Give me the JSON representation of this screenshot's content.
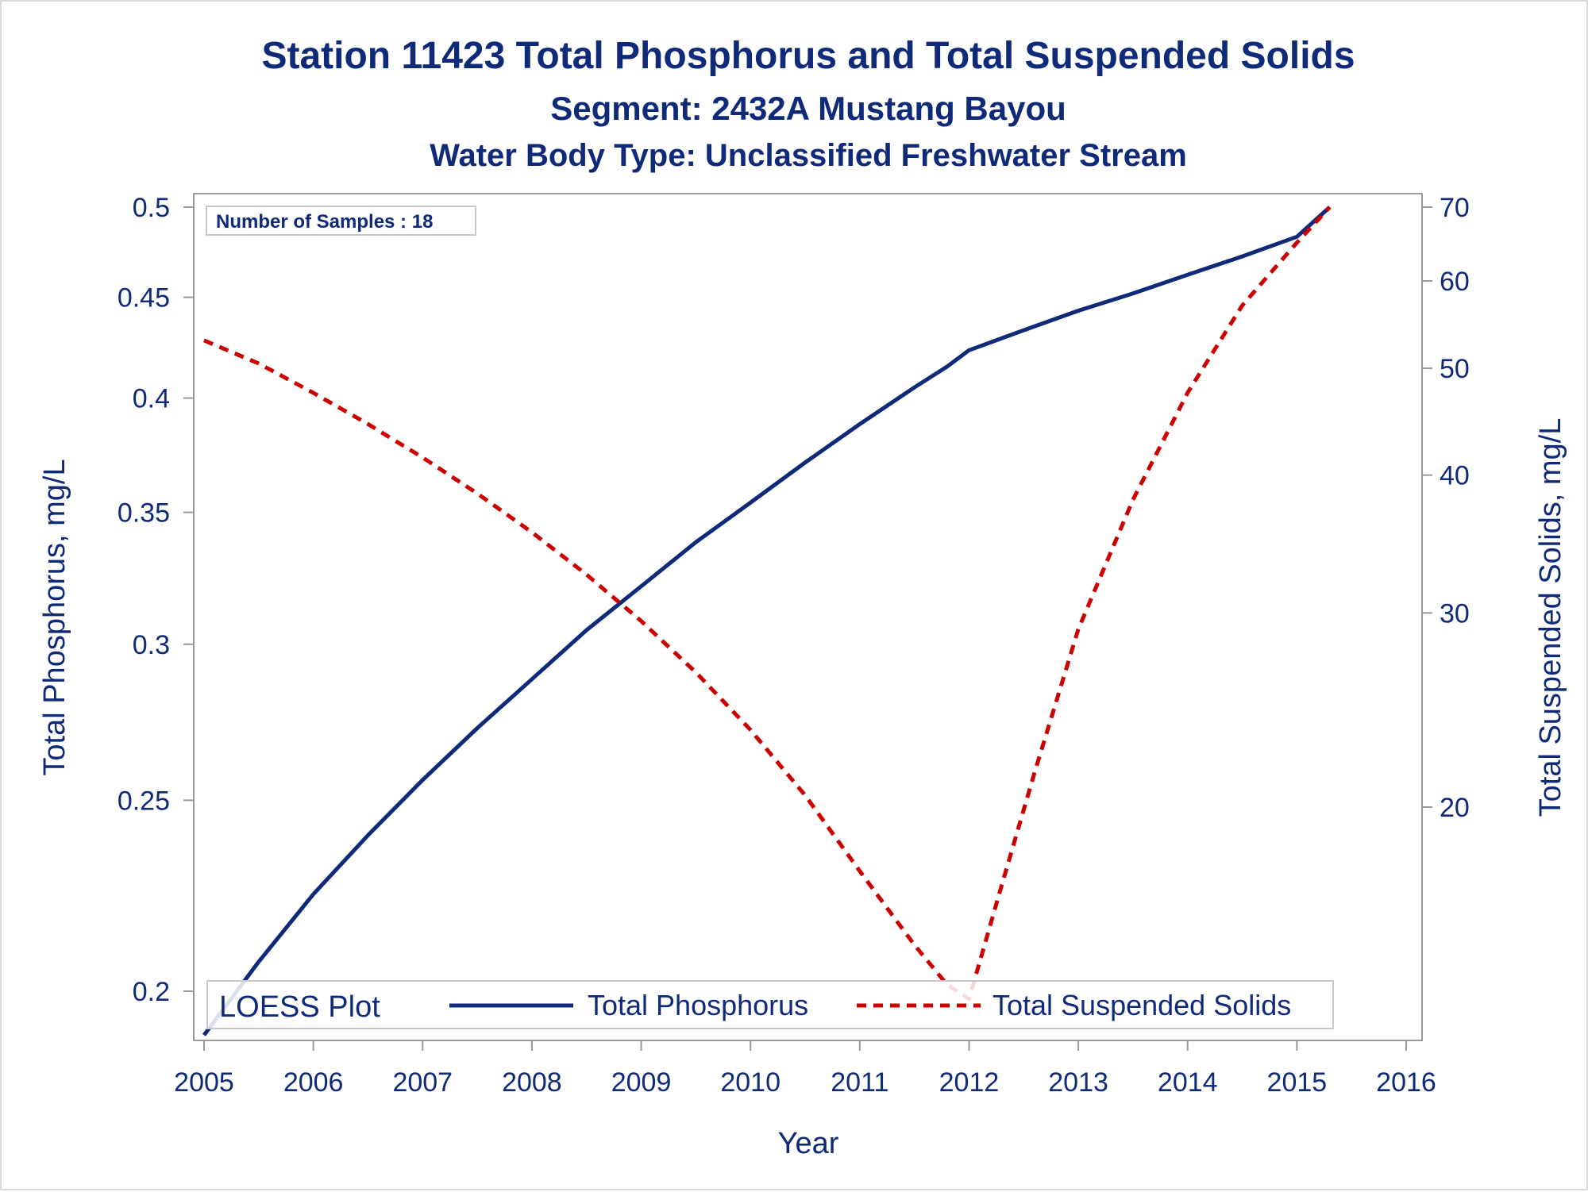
{
  "colors": {
    "text": "#0f2a78",
    "phosphorus": "#0f2a78",
    "tss": "#cc0000",
    "frame": "#9a9a9a"
  },
  "chart_data": {
    "type": "line",
    "title": "Station 11423  Total Phosphorus and Total Suspended Solids",
    "subtitle": "Segment: 2432A  Mustang Bayou",
    "subtitle2": "Water Body Type: Unclassified Freshwater Stream",
    "xlabel": "Year",
    "ylabel": "Total Phosphorus, mg/L",
    "y2label": "Total Suspended Solids, mg/L",
    "xlim": [
      2005,
      2016
    ],
    "x_ticks": [
      "2005",
      "2006",
      "2007",
      "2008",
      "2009",
      "2010",
      "2011",
      "2012",
      "2013",
      "2014",
      "2015",
      "2016"
    ],
    "y_scale": "log",
    "y_ticks": [
      "0.2",
      "0.25",
      "0.3",
      "0.35",
      "0.4",
      "0.45",
      "0.5"
    ],
    "y2_scale": "log",
    "y2_ticks": [
      "20",
      "30",
      "40",
      "50",
      "60",
      "70"
    ],
    "inset": "Number of Samples : 18",
    "legend": {
      "title": "LOESS Plot",
      "position": "bottom-inside",
      "entries": [
        "Total Phosphorus",
        "Total Suspended Solids"
      ]
    },
    "series": [
      {
        "name": "Total Phosphorus",
        "axis": "left",
        "style": "solid",
        "x": [
          2005.0,
          2005.5,
          2006.0,
          2006.5,
          2007.0,
          2007.5,
          2008.0,
          2008.5,
          2009.0,
          2009.5,
          2010.0,
          2010.5,
          2011.0,
          2011.5,
          2011.8,
          2012.0,
          2012.5,
          2013.0,
          2013.5,
          2014.0,
          2014.5,
          2015.0,
          2015.3
        ],
        "values": [
          0.19,
          0.207,
          0.224,
          0.24,
          0.256,
          0.272,
          0.288,
          0.305,
          0.321,
          0.338,
          0.354,
          0.371,
          0.388,
          0.405,
          0.415,
          0.423,
          0.433,
          0.443,
          0.452,
          0.462,
          0.472,
          0.483,
          0.5
        ]
      },
      {
        "name": "Total Suspended Solids",
        "axis": "right",
        "style": "dashed",
        "x": [
          2005.0,
          2005.5,
          2006.0,
          2006.5,
          2007.0,
          2007.5,
          2008.0,
          2008.5,
          2009.0,
          2009.5,
          2010.0,
          2010.5,
          2011.0,
          2011.5,
          2011.8,
          2012.0,
          2012.3,
          2012.6,
          2013.0,
          2013.5,
          2014.0,
          2014.5,
          2015.0,
          2015.3
        ],
        "values": [
          53,
          50.5,
          47.5,
          44.5,
          41.5,
          38.5,
          35.5,
          32.5,
          29.5,
          26.5,
          23.5,
          20.5,
          17.5,
          15,
          13.8,
          13.4,
          17,
          21.5,
          29,
          38,
          47.5,
          57,
          65,
          70
        ]
      }
    ]
  }
}
